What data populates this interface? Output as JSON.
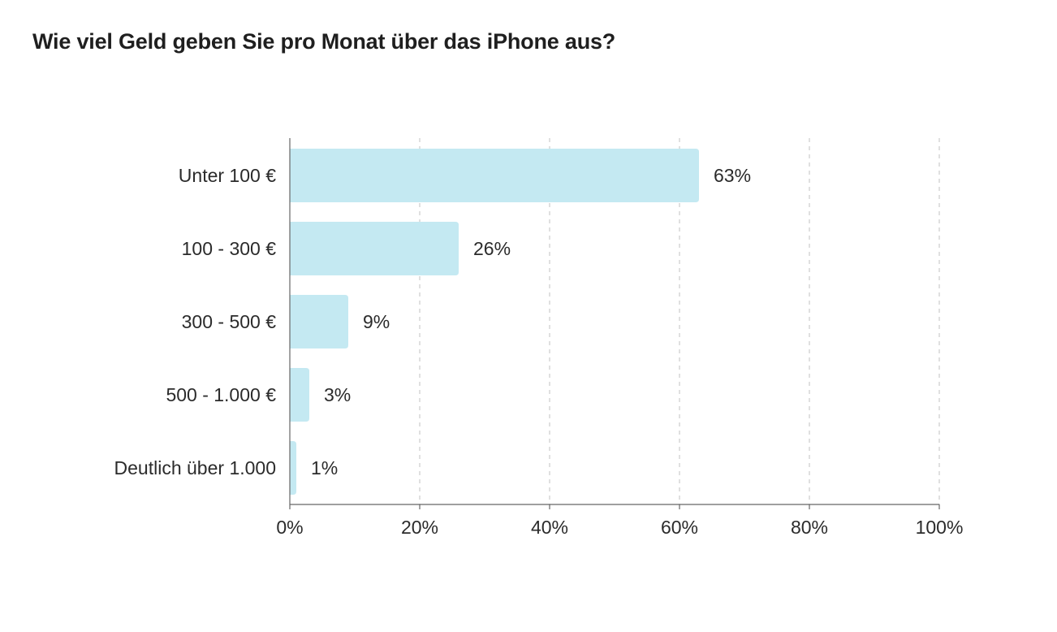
{
  "chart_data": {
    "type": "bar",
    "orientation": "horizontal",
    "title": "Wie viel Geld geben Sie pro Monat über das iPhone aus?",
    "categories": [
      "Unter 100 €",
      "100 - 300 €",
      "300 - 500 €",
      "500 - 1.000 €",
      "Deutlich über 1.000"
    ],
    "values": [
      63,
      26,
      9,
      3,
      1
    ],
    "value_labels": [
      "63%",
      "26%",
      "9%",
      "3%",
      "1%"
    ],
    "xlim": [
      0,
      100
    ],
    "xticks": [
      0,
      20,
      40,
      60,
      80,
      100
    ],
    "xtick_labels": [
      "0%",
      "20%",
      "40%",
      "60%",
      "80%",
      "100%"
    ],
    "grid": "vertical dashed",
    "bar_color": "#c4e9f2",
    "grid_color": "#cccccc",
    "axis_color": "#666666"
  }
}
